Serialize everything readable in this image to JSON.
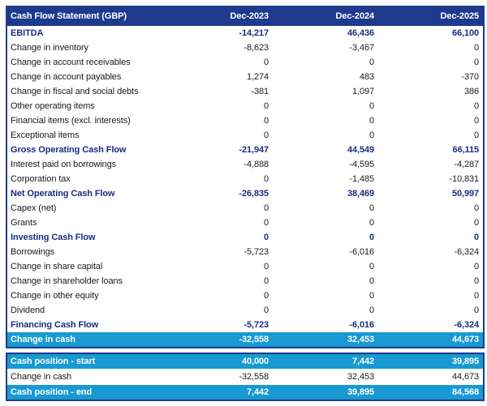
{
  "colors": {
    "navy": "#1e3a8c",
    "cyan": "#1899d1",
    "bold_text": "#1a2d80",
    "body_text": "#1a1a1a"
  },
  "header": {
    "title": "Cash Flow Statement (GBP)",
    "columns": [
      "Dec-2023",
      "Dec-2024",
      "Dec-2025"
    ]
  },
  "chart_data": {
    "type": "table",
    "title": "Cash Flow Statement (GBP)",
    "categories": [
      "Dec-2023",
      "Dec-2024",
      "Dec-2025"
    ],
    "rows": [
      {
        "label": "EBITDA",
        "values": [
          "-14,217",
          "46,436",
          "66,100"
        ],
        "style": "bold"
      },
      {
        "label": "Change in inventory",
        "values": [
          "-8,623",
          "-3,467",
          "0"
        ],
        "style": "normal"
      },
      {
        "label": "Change in account receivables",
        "values": [
          "0",
          "0",
          "0"
        ],
        "style": "normal"
      },
      {
        "label": "Change in account payables",
        "values": [
          "1,274",
          "483",
          "-370"
        ],
        "style": "normal"
      },
      {
        "label": "Change in fiscal and social debts",
        "values": [
          "-381",
          "1,097",
          "386"
        ],
        "style": "normal"
      },
      {
        "label": "Other operating items",
        "values": [
          "0",
          "0",
          "0"
        ],
        "style": "normal"
      },
      {
        "label": "Financial items (excl. interests)",
        "values": [
          "0",
          "0",
          "0"
        ],
        "style": "normal"
      },
      {
        "label": "Exceptional items",
        "values": [
          "0",
          "0",
          "0"
        ],
        "style": "normal"
      },
      {
        "label": "Gross Operating Cash Flow",
        "values": [
          "-21,947",
          "44,549",
          "66,115"
        ],
        "style": "bold"
      },
      {
        "label": "Interest paid on borrowings",
        "values": [
          "-4,888",
          "-4,595",
          "-4,287"
        ],
        "style": "normal"
      },
      {
        "label": "Corporation tax",
        "values": [
          "0",
          "-1,485",
          "-10,831"
        ],
        "style": "normal"
      },
      {
        "label": "Net Operating Cash Flow",
        "values": [
          "-26,835",
          "38,469",
          "50,997"
        ],
        "style": "bold"
      },
      {
        "label": "Capex (net)",
        "values": [
          "0",
          "0",
          "0"
        ],
        "style": "normal"
      },
      {
        "label": "Grants",
        "values": [
          "0",
          "0",
          "0"
        ],
        "style": "normal"
      },
      {
        "label": "Investing Cash Flow",
        "values": [
          "0",
          "0",
          "0"
        ],
        "style": "bold"
      },
      {
        "label": "Borrowings",
        "values": [
          "-5,723",
          "-6,016",
          "-6,324"
        ],
        "style": "normal"
      },
      {
        "label": "Change in share capital",
        "values": [
          "0",
          "0",
          "0"
        ],
        "style": "normal"
      },
      {
        "label": "Change in shareholder loans",
        "values": [
          "0",
          "0",
          "0"
        ],
        "style": "normal"
      },
      {
        "label": "Change in other equity",
        "values": [
          "0",
          "0",
          "0"
        ],
        "style": "normal"
      },
      {
        "label": "Dividend",
        "values": [
          "0",
          "0",
          "0"
        ],
        "style": "normal"
      },
      {
        "label": "Financing Cash Flow",
        "values": [
          "-5,723",
          "-6,016",
          "-6,324"
        ],
        "style": "bold"
      },
      {
        "label": "Change in cash",
        "values": [
          "-32,558",
          "32,453",
          "44,673"
        ],
        "style": "highlight"
      }
    ],
    "position_rows": [
      {
        "label": "Cash position - start",
        "values": [
          "40,000",
          "7,442",
          "39,895"
        ],
        "style": "highlight"
      },
      {
        "label": "Change in cash",
        "values": [
          "-32,558",
          "32,453",
          "44,673"
        ],
        "style": "normal"
      },
      {
        "label": "Cash position - end",
        "values": [
          "7,442",
          "39,895",
          "84,568"
        ],
        "style": "highlight"
      }
    ]
  }
}
